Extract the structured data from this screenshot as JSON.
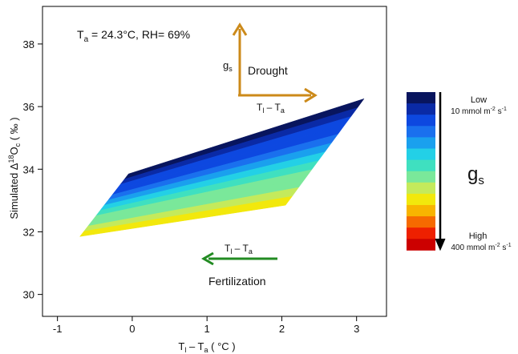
{
  "chart_data": {
    "type": "heatmap",
    "title_parts": {
      "ta_sym": "T",
      "ta_sub": "a",
      "ta_val": " = 24.3°C, RH= 69%"
    },
    "xlabel_parts": {
      "t1": "T",
      "s1": "l",
      "mid": " – T",
      "s2": "a",
      "unit": " ( °C )"
    },
    "ylabel_parts": {
      "pre": "Simulated Δ",
      "sup": "18",
      "O": "O",
      "sub": "c",
      "unit": " ( ‰ )"
    },
    "xlim": [
      -1.2,
      3.4
    ],
    "ylim": [
      29.3,
      39.2
    ],
    "xticks": [
      -1,
      0,
      1,
      2,
      3
    ],
    "yticks": [
      30,
      32,
      34,
      36,
      38
    ],
    "xtick_labels": [
      "-1",
      "0",
      "1",
      "2",
      "3"
    ],
    "ytick_labels": [
      "30",
      "32",
      "34",
      "36",
      "38"
    ],
    "region": {
      "top_edge": [
        [
          -0.05,
          33.85
        ],
        [
          3.1,
          36.25
        ]
      ],
      "bottom_edge": [
        [
          -0.7,
          31.85
        ],
        [
          2.05,
          32.85
        ]
      ],
      "low_gs_side": "top",
      "high_gs_side": "bottom",
      "bands": 12
    },
    "legend": {
      "title": "g",
      "title_sub": "s",
      "low_label": "Low",
      "low_value_pre": "10 mmol m",
      "low_value_exp1": "-2",
      "low_value_mid": " s",
      "low_value_exp2": "-1",
      "high_label": "High",
      "high_value_pre": "400 mmol m",
      "high_value_exp1": "-2",
      "high_value_mid": " s",
      "high_value_exp2": "-1",
      "colors": [
        "#08155e",
        "#0a2aa6",
        "#0d48e0",
        "#1a70ee",
        "#1aa0ee",
        "#23d0e6",
        "#3fe0c0",
        "#7ae89a",
        "#c4ea5c",
        "#f2e80c",
        "#f8b400",
        "#f66a00",
        "#ee2000",
        "#cc0000"
      ]
    },
    "annotations": {
      "drought": {
        "label": "Drought",
        "gs_sym": "g",
        "gs_sub": "s",
        "x_sym": "T",
        "x_s1": "l",
        "x_mid": " – T",
        "x_s2": "a",
        "color": "#cc8a1a"
      },
      "fertilization": {
        "label": "Fertilization",
        "x_sym": "T",
        "x_s1": "l",
        "x_mid": " – T",
        "x_s2": "a",
        "color": "#228B22"
      }
    }
  }
}
